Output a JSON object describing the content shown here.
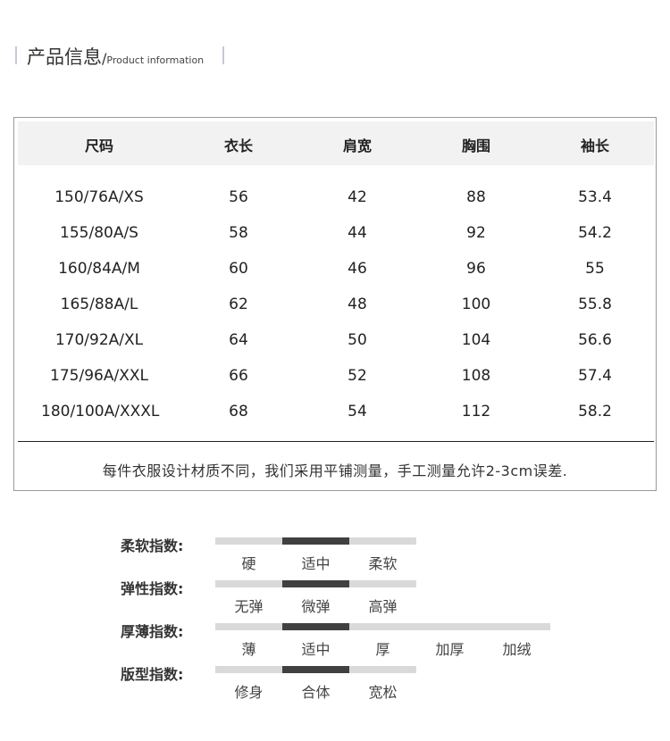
{
  "header": {
    "title": "产品信息",
    "slash": "/",
    "subtitle": "Product information"
  },
  "table": {
    "columns": [
      "尺码",
      "衣长",
      "肩宽",
      "胸围",
      "袖长"
    ],
    "rows": [
      [
        "150/76A/XS",
        "56",
        "42",
        "88",
        "53.4"
      ],
      [
        "155/80A/S",
        "58",
        "44",
        "92",
        "54.2"
      ],
      [
        "160/84A/M",
        "60",
        "46",
        "96",
        "55"
      ],
      [
        "165/88A/L",
        "62",
        "48",
        "100",
        "55.8"
      ],
      [
        "170/92A/XL",
        "64",
        "50",
        "104",
        "56.6"
      ],
      [
        "175/96A/XXL",
        "66",
        "52",
        "108",
        "57.4"
      ],
      [
        "180/100A/XXXL",
        "68",
        "54",
        "112",
        "58.2"
      ]
    ],
    "note": "每件衣服设计材质不同，我们采用平铺测量，手工测量允许2-3cm误差."
  },
  "indices": [
    {
      "label": "柔软指数:",
      "options": [
        "硬",
        "适中",
        "柔软"
      ],
      "selected": 1
    },
    {
      "label": "弹性指数:",
      "options": [
        "无弹",
        "微弹",
        "高弹"
      ],
      "selected": 1
    },
    {
      "label": "厚薄指数:",
      "options": [
        "薄",
        "适中",
        "厚",
        "加厚",
        "加绒"
      ],
      "selected": 1
    },
    {
      "label": "版型指数:",
      "options": [
        "修身",
        "合体",
        "宽松"
      ],
      "selected": 1
    }
  ],
  "colors": {
    "selected": "#404040",
    "unselected": "#d9d9d9",
    "header_bg": "#f2f2f2"
  }
}
